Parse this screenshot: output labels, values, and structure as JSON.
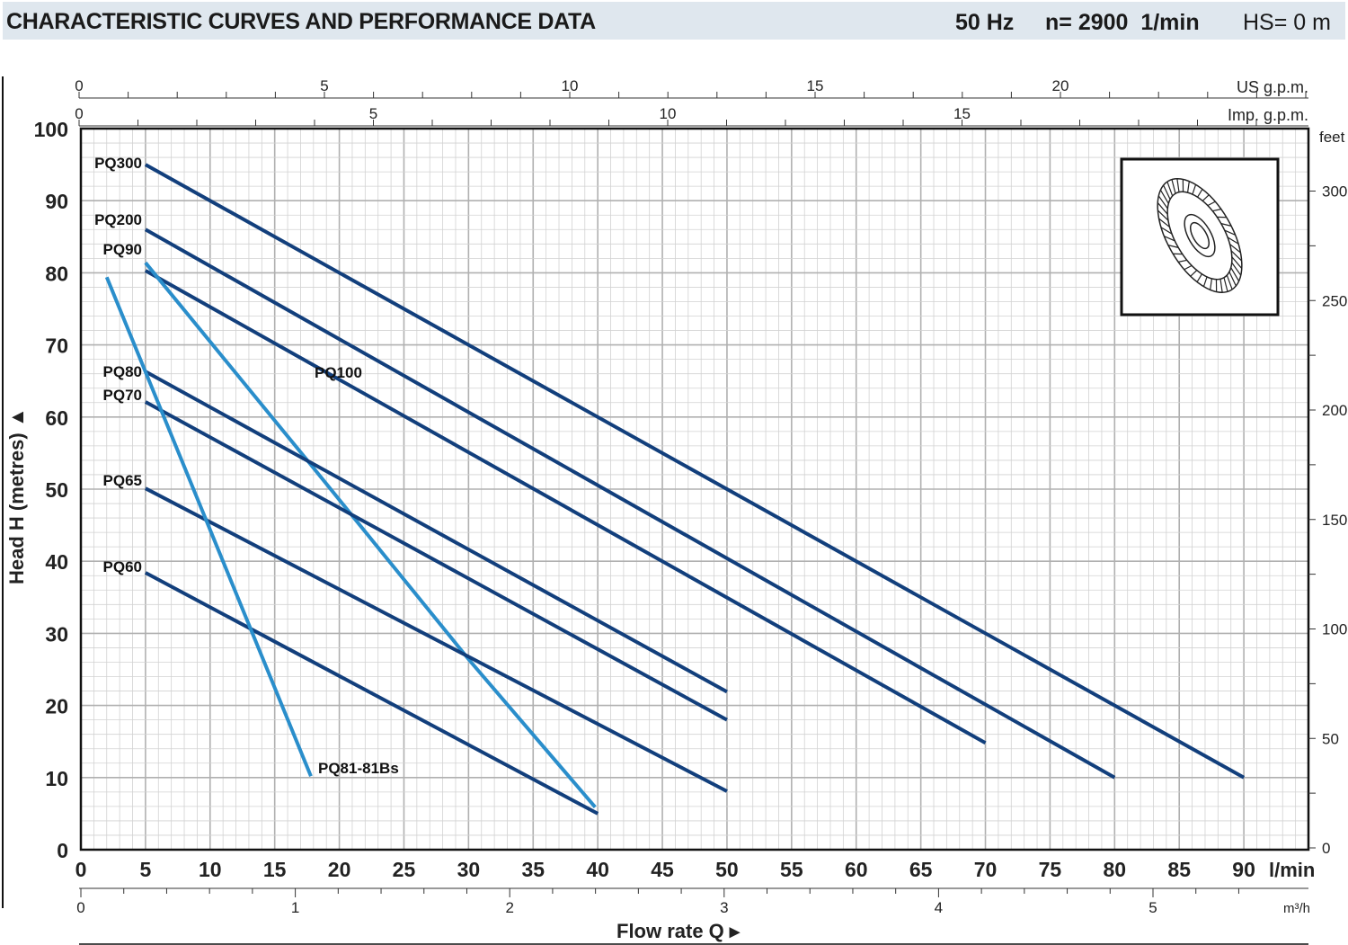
{
  "header": {
    "title": "CHARACTERISTIC CURVES AND PERFORMANCE DATA",
    "freq": "50 Hz",
    "speed": "n= 2900  1/min",
    "hs": "HS= 0 m"
  },
  "chart_data": {
    "type": "line",
    "xlabel": "Flow rate Q",
    "x_unit": "l/min",
    "ylabel": "Head H (metres)",
    "xlim": [
      0,
      95
    ],
    "ylim": [
      0,
      100
    ],
    "grid": true,
    "x_ticks": [
      0,
      5,
      10,
      15,
      20,
      25,
      30,
      35,
      40,
      45,
      50,
      55,
      60,
      65,
      70,
      75,
      80,
      85,
      90
    ],
    "y_ticks": [
      0,
      10,
      20,
      30,
      40,
      50,
      60,
      70,
      80,
      90,
      100
    ],
    "secondary_axes": {
      "us_gpm": {
        "label": "US g.p.m.",
        "ticks": [
          0,
          5,
          10,
          15,
          20
        ]
      },
      "imp_gpm": {
        "label": "Imp. g.p.m.",
        "ticks": [
          0,
          5,
          10,
          15
        ]
      },
      "feet": {
        "label": "feet",
        "ticks": [
          0,
          50,
          100,
          150,
          200,
          250,
          300
        ]
      },
      "m3h": {
        "label": "m³/h",
        "ticks": [
          0,
          1,
          2,
          3,
          4,
          5
        ]
      }
    },
    "series": [
      {
        "name": "PQ300",
        "color": "#123f7c",
        "points": [
          [
            5,
            95
          ],
          [
            90,
            10
          ]
        ]
      },
      {
        "name": "PQ200",
        "color": "#123f7c",
        "points": [
          [
            5,
            86
          ],
          [
            80,
            10
          ]
        ]
      },
      {
        "name": "PQ100",
        "color": "#123f7c",
        "points": [
          [
            5,
            80.3
          ],
          [
            70,
            14.8
          ]
        ]
      },
      {
        "name": "PQ90",
        "color": "#2a8ecb",
        "points": [
          [
            5,
            81.4
          ],
          [
            17.7,
            53.6
          ],
          [
            30.1,
            26.2
          ],
          [
            39.8,
            5.9
          ]
        ]
      },
      {
        "name": "PQ80",
        "color": "#123f7c",
        "points": [
          [
            5,
            66.3
          ],
          [
            50,
            21.9
          ]
        ]
      },
      {
        "name": "PQ70",
        "color": "#123f7c",
        "points": [
          [
            5,
            62.1
          ],
          [
            50,
            18
          ]
        ]
      },
      {
        "name": "PQ65",
        "color": "#123f7c",
        "points": [
          [
            5,
            50.1
          ],
          [
            50,
            8.1
          ]
        ]
      },
      {
        "name": "PQ60",
        "color": "#123f7c",
        "points": [
          [
            5,
            38.4
          ],
          [
            40,
            5
          ]
        ]
      },
      {
        "name": "PQ81-81Bs",
        "color": "#2a8ecb",
        "points": [
          [
            2,
            79.4
          ],
          [
            17.8,
            10.2
          ]
        ]
      }
    ]
  }
}
